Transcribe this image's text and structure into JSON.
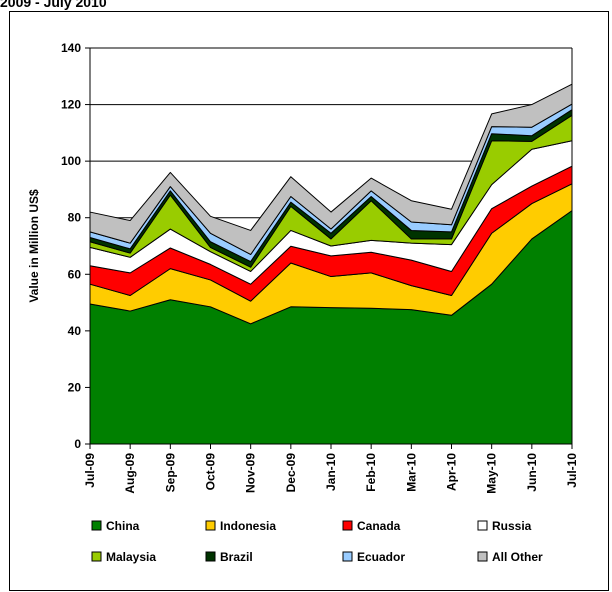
{
  "header": {
    "text": "2009 - July 2010"
  },
  "chart_data": {
    "type": "area",
    "stacked": true,
    "xlabel": "",
    "ylabel": "Value in Million US$",
    "ylim": [
      0,
      140
    ],
    "yticks": [
      0,
      20,
      40,
      60,
      80,
      100,
      120,
      140
    ],
    "categories": [
      "Jul-09",
      "Aug-09",
      "Sep-09",
      "Oct-09",
      "Nov-09",
      "Dec-09",
      "Jan-10",
      "Feb-10",
      "Mar-10",
      "Apr-10",
      "May-10",
      "Jun-10",
      "Jul-10"
    ],
    "grid": true,
    "legend_position": "bottom",
    "series": [
      {
        "name": "China",
        "color": "#008000",
        "values": [
          49.5,
          47,
          51,
          48.5,
          42.5,
          48.5,
          48.2,
          48,
          47.5,
          45.5,
          56.5,
          72.5,
          82.5
        ]
      },
      {
        "name": "Indonesia",
        "color": "#FFCC00",
        "values": [
          7,
          5.5,
          11,
          9.5,
          8,
          15.5,
          11,
          12.5,
          8.5,
          7,
          18,
          12.5,
          9.5
        ]
      },
      {
        "name": "Canada",
        "color": "#FF0000",
        "values": [
          6.5,
          8,
          7.3,
          5.5,
          6,
          5.9,
          7.3,
          7.3,
          9,
          8.5,
          8.7,
          6.2,
          6.2
        ]
      },
      {
        "name": "Russia",
        "color": "#FFFFFF",
        "values": [
          6.5,
          5.5,
          6.7,
          4.5,
          4.5,
          5.6,
          3.5,
          4.2,
          6,
          9.5,
          8.5,
          13,
          9
        ]
      },
      {
        "name": "Malaysia",
        "color": "#99CC00",
        "values": [
          2,
          1.5,
          12,
          1.5,
          1.5,
          8.5,
          2.5,
          14,
          1.5,
          2,
          15.5,
          2.8,
          9
        ]
      },
      {
        "name": "Brazil",
        "color": "#003300",
        "values": [
          1.5,
          1.5,
          1.5,
          2,
          2,
          1.5,
          2,
          1.5,
          3,
          2.5,
          2.5,
          2,
          2
        ]
      },
      {
        "name": "Ecuador",
        "color": "#99CCFF",
        "values": [
          2,
          2,
          1.5,
          3,
          2.5,
          2,
          1.5,
          2,
          3,
          2.5,
          2.5,
          3,
          2
        ]
      },
      {
        "name": "All Other",
        "color": "#C0C0C0",
        "values": [
          7,
          8,
          5,
          6,
          8.5,
          7,
          6,
          4.5,
          7.5,
          5.5,
          4.5,
          8,
          7
        ]
      }
    ]
  }
}
